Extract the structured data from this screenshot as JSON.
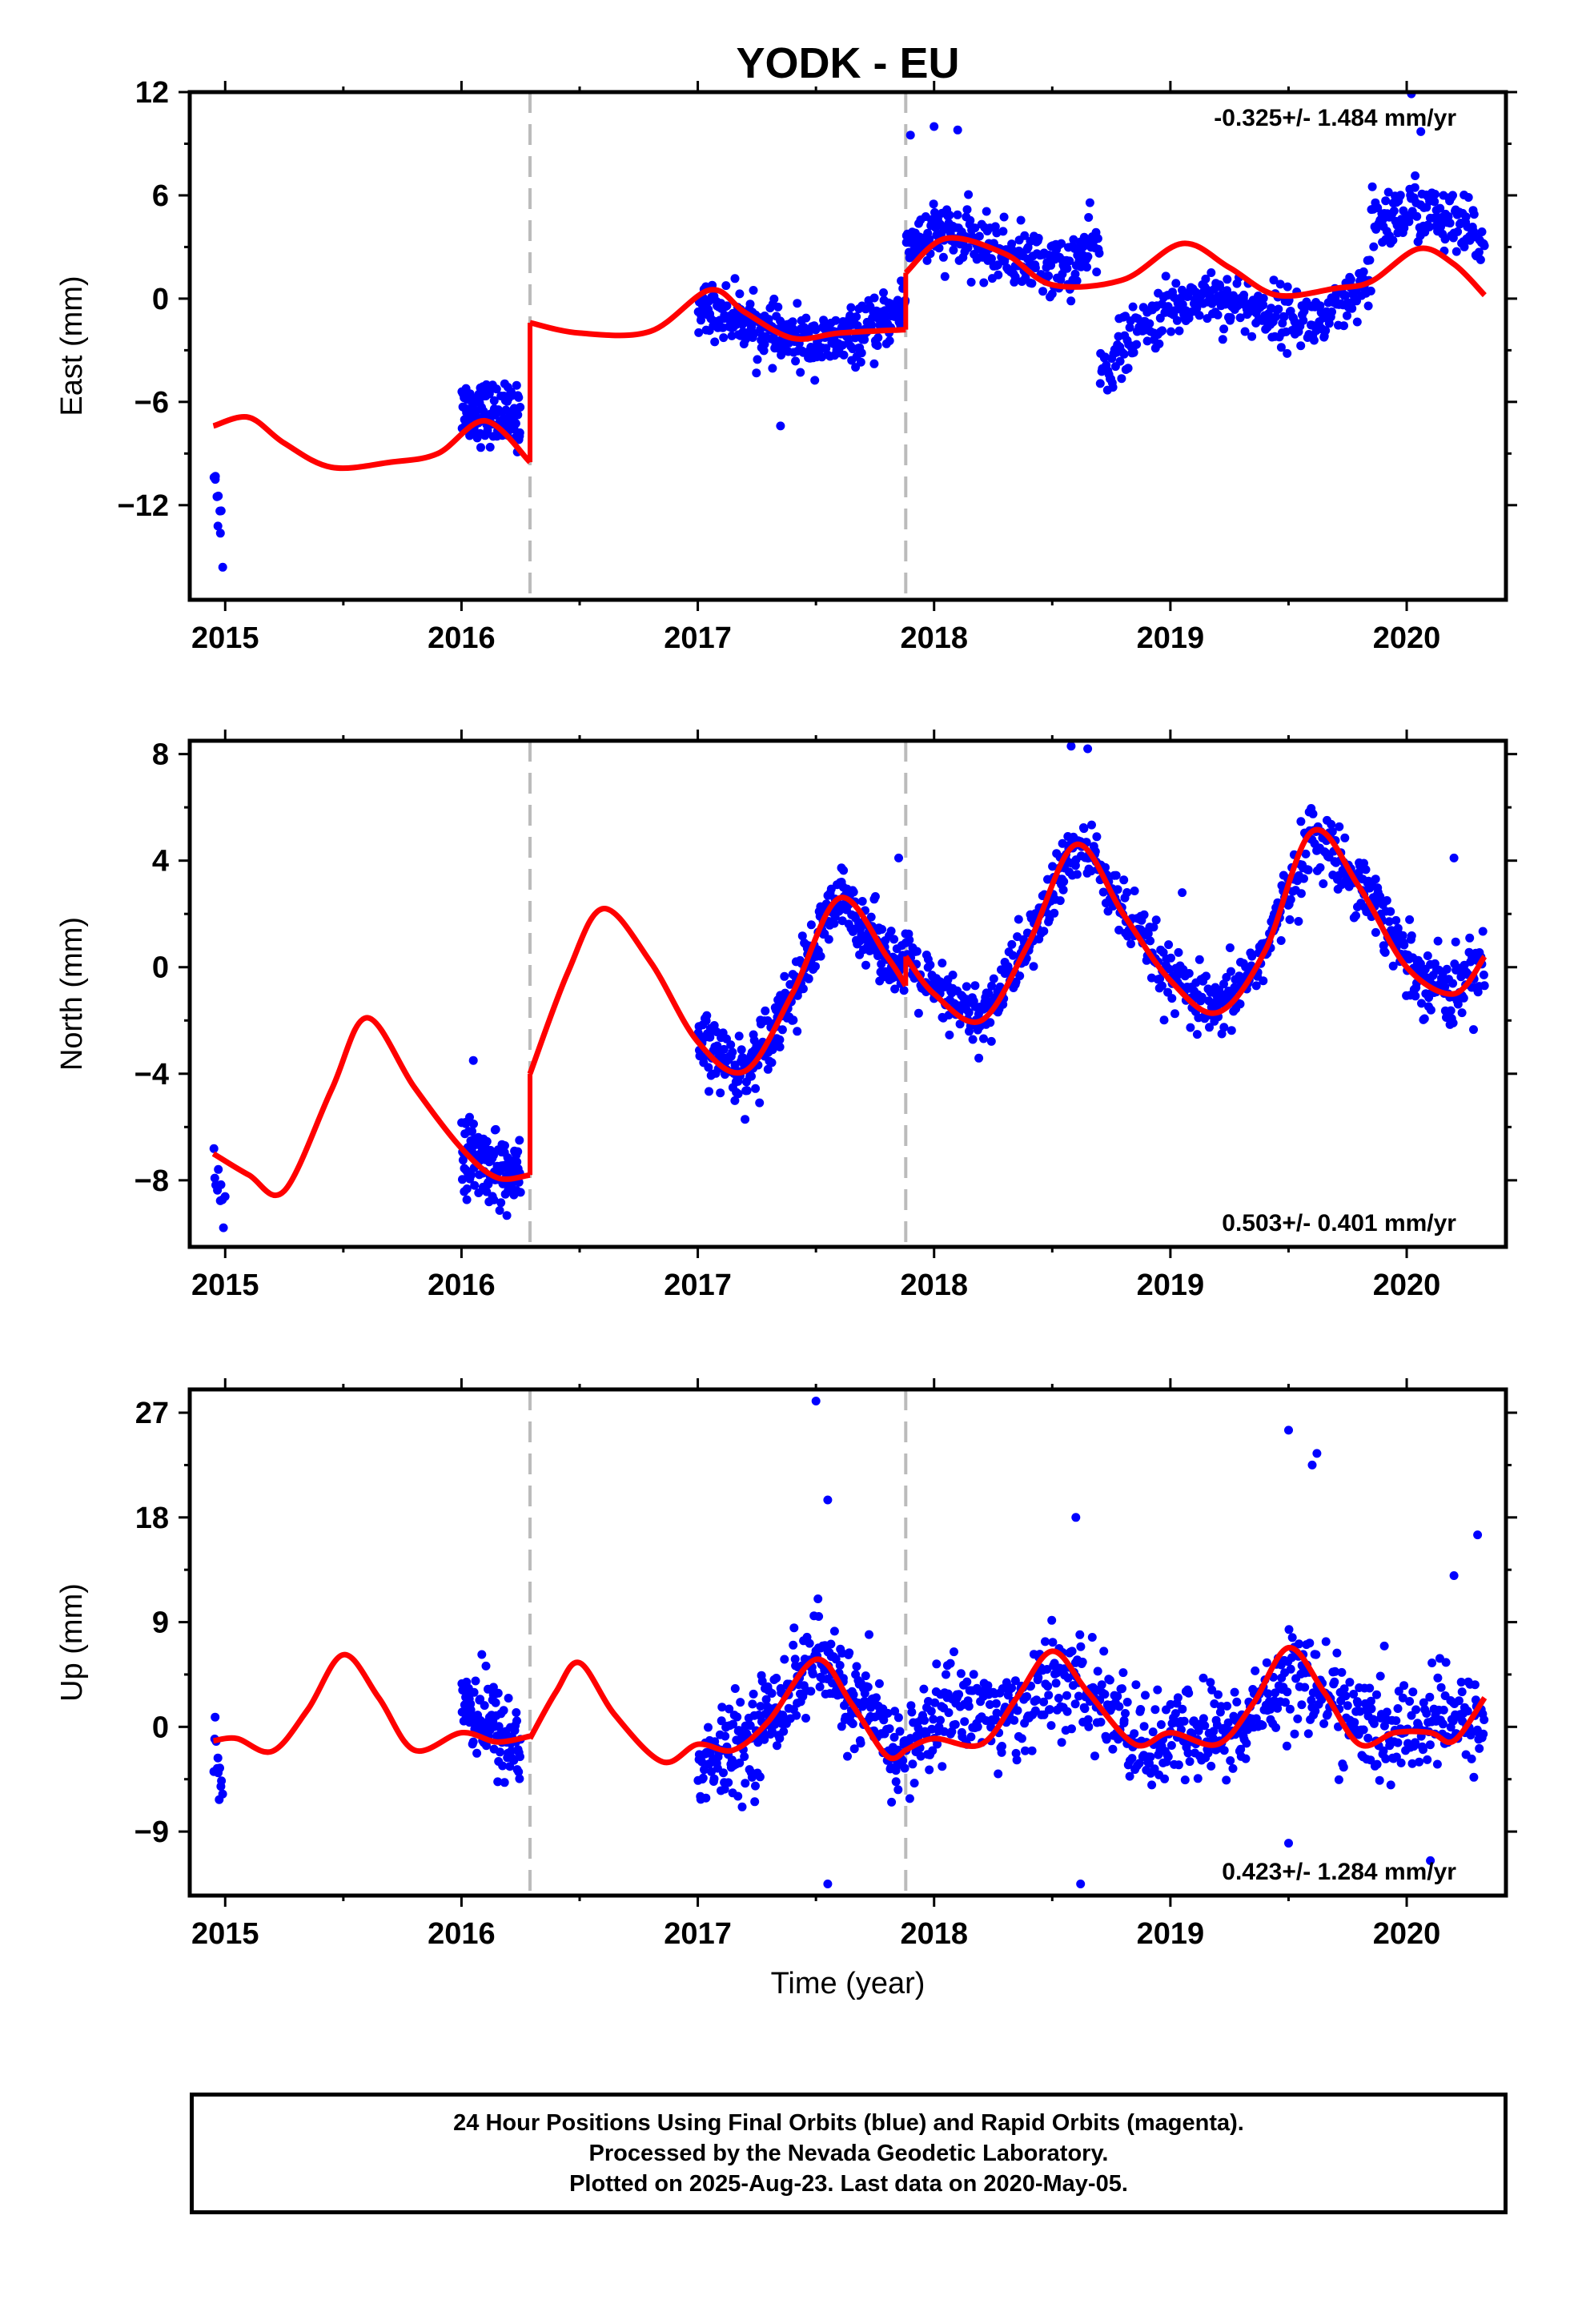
{
  "chart_data": [
    {
      "type": "scatter",
      "title": "YODK - EU",
      "ylabel": "East (mm)",
      "xlim": [
        2014.85,
        2020.42
      ],
      "ylim": [
        -17.5,
        12.0
      ],
      "yticks": [
        12,
        6,
        0,
        -6,
        -12
      ],
      "ytick_labels": [
        "12",
        "6",
        "0",
        "−6",
        "−12"
      ],
      "xticks": [
        2015,
        2016,
        2017,
        2018,
        2019,
        2020
      ],
      "xtick_labels": [
        "2015",
        "2016",
        "2017",
        "2018",
        "2019",
        "2020"
      ],
      "rate_label": "-0.325+/- 1.484 mm/yr",
      "rate_position": "top-right",
      "offsets": [
        2016.29,
        2017.88
      ],
      "points_color": "#0000ff",
      "model_color": "#ff0000",
      "model": {
        "segments": [
          {
            "x": [
              2014.95,
              2015.1,
              2015.25,
              2015.45,
              2015.7,
              2015.9,
              2016.1,
              2016.29
            ],
            "y": [
              -7.4,
              -6.9,
              -8.4,
              -9.8,
              -9.5,
              -9.0,
              -7.1,
              -9.5
            ]
          },
          {
            "x": [
              2016.29,
              2016.5,
              2016.8,
              2017.05,
              2017.2,
              2017.4,
              2017.6,
              2017.88
            ],
            "y": [
              -1.4,
              -2.0,
              -1.9,
              0.5,
              -0.8,
              -2.3,
              -2.0,
              -1.8
            ]
          },
          {
            "x": [
              2017.88,
              2018.05,
              2018.3,
              2018.5,
              2018.8,
              2019.05,
              2019.25,
              2019.45,
              2019.7,
              2019.85,
              2020.05,
              2020.2,
              2020.33
            ],
            "y": [
              1.5,
              3.5,
              2.6,
              0.8,
              1.1,
              3.2,
              1.8,
              0.2,
              0.6,
              1.0,
              2.9,
              2.0,
              0.2
            ]
          }
        ]
      },
      "clusters": [
        {
          "x": [
            2014.95,
            2014.99
          ],
          "y": [
            -9.0,
            -14.5
          ],
          "spread": 1.8,
          "count": 10
        },
        {
          "x": [
            2016.0,
            2016.25
          ],
          "y": [
            -6.3,
            -7.0
          ],
          "spread": 1.6,
          "count": 130
        },
        {
          "x": [
            2017.0,
            2017.15,
            2017.35,
            2017.55,
            2017.75,
            2017.88
          ],
          "y": [
            -0.5,
            -1.0,
            -2.3,
            -2.6,
            -1.8,
            -0.2
          ],
          "spread": 1.4,
          "count": 330
        },
        {
          "x": [
            2017.88,
            2018.05,
            2018.3,
            2018.55,
            2018.7
          ],
          "y": [
            3.3,
            3.8,
            2.6,
            1.7,
            3.2
          ],
          "spread": 1.6,
          "count": 260
        },
        {
          "x": [
            2018.7,
            2018.8,
            2018.95,
            2019.15,
            2019.4,
            2019.65,
            2019.85
          ],
          "y": [
            -4.5,
            -2.8,
            -1.0,
            0.3,
            -0.8,
            -1.4,
            0.8
          ],
          "spread": 1.5,
          "count": 330
        },
        {
          "x": [
            2019.85,
            2020.05,
            2020.33
          ],
          "y": [
            4.4,
            5.2,
            3.3
          ],
          "spread": 1.7,
          "count": 150
        }
      ],
      "outliers": {
        "x": [
          2017.9,
          2018.0,
          2018.1,
          2020.02,
          2020.06,
          2017.35
        ],
        "y": [
          9.5,
          10.0,
          9.8,
          11.9,
          9.7,
          -7.4
        ]
      }
    },
    {
      "type": "scatter",
      "ylabel": "North (mm)",
      "xlim": [
        2014.85,
        2020.42
      ],
      "ylim": [
        -10.5,
        8.5
      ],
      "yticks": [
        8,
        4,
        0,
        -4,
        -8
      ],
      "ytick_labels": [
        "8",
        "4",
        "0",
        "−4",
        "−8"
      ],
      "xticks": [
        2015,
        2016,
        2017,
        2018,
        2019,
        2020
      ],
      "xtick_labels": [
        "2015",
        "2016",
        "2017",
        "2018",
        "2019",
        "2020"
      ],
      "rate_label": "0.503+/- 0.401 mm/yr",
      "rate_position": "bottom-right",
      "offsets": [
        2016.29,
        2017.88
      ],
      "points_color": "#0000ff",
      "model_color": "#ff0000",
      "model": {
        "segments": [
          {
            "x": [
              2014.95,
              2015.1,
              2015.25,
              2015.45,
              2015.6,
              2015.8,
              2016.0,
              2016.15,
              2016.29
            ],
            "y": [
              -7.0,
              -7.8,
              -8.4,
              -4.6,
              -1.9,
              -4.5,
              -6.8,
              -7.9,
              -7.8
            ]
          },
          {
            "x": [
              2016.29,
              2016.45,
              2016.6,
              2016.8,
              2017.0,
              2017.2,
              2017.4,
              2017.6,
              2017.8,
              2017.88
            ],
            "y": [
              -4.0,
              -0.2,
              2.2,
              0.2,
              -2.8,
              -3.9,
              -1.0,
              2.6,
              0.4,
              -0.7
            ]
          },
          {
            "x": [
              2017.88,
              2018.0,
              2018.2,
              2018.4,
              2018.6,
              2018.8,
              2019.0,
              2019.2,
              2019.4,
              2019.6,
              2019.8,
              2020.0,
              2020.2,
              2020.33
            ],
            "y": [
              0.4,
              -1.0,
              -2.0,
              0.9,
              4.6,
              2.0,
              -0.5,
              -1.7,
              0.6,
              5.1,
              3.0,
              0.0,
              -1.0,
              0.4
            ]
          }
        ]
      },
      "clusters": [
        {
          "x": [
            2014.95,
            2015.0
          ],
          "y": [
            -7.0,
            -9.0
          ],
          "spread": 1.2,
          "count": 10
        },
        {
          "x": [
            2016.0,
            2016.25
          ],
          "y": [
            -6.9,
            -8.0
          ],
          "spread": 1.2,
          "count": 130
        },
        {
          "x": [
            2017.0,
            2017.2,
            2017.4,
            2017.6,
            2017.8,
            2017.88
          ],
          "y": [
            -2.8,
            -4.0,
            -1.0,
            2.6,
            0.6,
            -0.4
          ],
          "spread": 1.1,
          "count": 330
        },
        {
          "x": [
            2017.88,
            2018.0,
            2018.2,
            2018.4,
            2018.6,
            2018.7
          ],
          "y": [
            0.4,
            -1.0,
            -2.0,
            0.9,
            4.6,
            3.8
          ],
          "spread": 1.1,
          "count": 260
        },
        {
          "x": [
            2018.7,
            2018.8,
            2019.0,
            2019.2,
            2019.4,
            2019.6,
            2019.85
          ],
          "y": [
            3.8,
            2.0,
            -0.5,
            -1.8,
            0.6,
            5.0,
            2.8
          ],
          "spread": 1.1,
          "count": 330
        },
        {
          "x": [
            2019.85,
            2020.0,
            2020.2,
            2020.33
          ],
          "y": [
            2.8,
            0.2,
            -1.0,
            0.4
          ],
          "spread": 1.2,
          "count": 150
        }
      ],
      "outliers": {
        "x": [
          2016.05,
          2017.85,
          2018.58,
          2018.65,
          2019.05,
          2020.2
        ],
        "y": [
          -3.5,
          4.1,
          8.3,
          8.2,
          2.8,
          4.1
        ]
      }
    },
    {
      "type": "scatter",
      "ylabel": "Up (mm)",
      "xlabel": "Time (year)",
      "xlim": [
        2014.85,
        2020.42
      ],
      "ylim": [
        -14.5,
        29.0
      ],
      "yticks": [
        27,
        18,
        9,
        0,
        -9
      ],
      "ytick_labels": [
        "27",
        "18",
        "9",
        "0",
        "−9"
      ],
      "xticks": [
        2015,
        2016,
        2017,
        2018,
        2019,
        2020
      ],
      "xtick_labels": [
        "2015",
        "2016",
        "2017",
        "2018",
        "2019",
        "2020"
      ],
      "rate_label": "0.423+/- 1.284 mm/yr",
      "rate_position": "bottom-right",
      "offsets": [
        2016.29,
        2017.88
      ],
      "points_color": "#0000ff",
      "model_color": "#ff0000",
      "model": {
        "segments": [
          {
            "x": [
              2014.95,
              2015.05,
              2015.2,
              2015.35,
              2015.5,
              2015.65,
              2015.8,
              2016.0,
              2016.15,
              2016.29
            ],
            "y": [
              -1.2,
              -1.0,
              -2.1,
              1.5,
              6.2,
              2.5,
              -2.0,
              -0.5,
              -1.3,
              -0.8
            ]
          },
          {
            "x": [
              2016.29,
              2016.4,
              2016.5,
              2016.65,
              2016.85,
              2017.0,
              2017.15,
              2017.3,
              2017.5,
              2017.65,
              2017.8,
              2017.88
            ],
            "y": [
              -1.0,
              3.0,
              5.5,
              1.0,
              -3.0,
              -1.5,
              -2.0,
              0.5,
              5.8,
              2.0,
              -2.5,
              -2.0
            ]
          },
          {
            "x": [
              2017.88,
              2018.0,
              2018.2,
              2018.35,
              2018.5,
              2018.65,
              2018.85,
              2019.0,
              2019.2,
              2019.35,
              2019.5,
              2019.65,
              2019.8,
              2019.95,
              2020.1,
              2020.2,
              2020.33
            ],
            "y": [
              -2.0,
              -1.0,
              -1.5,
              2.5,
              6.5,
              3.0,
              -1.5,
              -0.5,
              -1.5,
              2.0,
              6.8,
              3.0,
              -1.5,
              -0.5,
              -0.5,
              -1.2,
              2.5
            ]
          }
        ]
      },
      "clusters": [
        {
          "x": [
            2014.95,
            2014.99
          ],
          "y": [
            0.0,
            -6.0
          ],
          "spread": 3.5,
          "count": 12
        },
        {
          "x": [
            2016.0,
            2016.25
          ],
          "y": [
            2.5,
            -2.0
          ],
          "spread": 3.5,
          "count": 120
        },
        {
          "x": [
            2017.0,
            2017.2,
            2017.5,
            2017.7,
            2017.88
          ],
          "y": [
            -3.5,
            -1.5,
            6.0,
            1.5,
            -3.0
          ],
          "spread": 3.6,
          "count": 320
        },
        {
          "x": [
            2017.88,
            2018.1,
            2018.3,
            2018.5,
            2018.7,
            2018.9,
            2019.1,
            2019.3,
            2019.5,
            2019.7,
            2019.9,
            2020.1,
            2020.33
          ],
          "y": [
            -2.0,
            2.5,
            0.5,
            4.0,
            2.5,
            -2.0,
            -0.5,
            -0.5,
            5.0,
            2.0,
            -1.0,
            0.5,
            0.5
          ],
          "spread": 3.8,
          "count": 700
        }
      ],
      "outliers": {
        "x": [
          2017.5,
          2017.55,
          2018.6,
          2019.5,
          2019.6,
          2019.62,
          2020.2,
          2020.3,
          2018.62,
          2017.55,
          2019.5,
          2020.1
        ],
        "y": [
          28.0,
          19.5,
          18.0,
          25.5,
          22.5,
          23.5,
          13.0,
          16.5,
          -13.5,
          -13.5,
          -10.0,
          -11.5
        ]
      }
    }
  ],
  "footer": {
    "line1": "24 Hour Positions Using Final Orbits (blue) and Rapid Orbits (magenta).",
    "line2": "Processed by the Nevada Geodetic Laboratory.",
    "line3": "Plotted on 2025-Aug-23. Last data on 2020-May-05."
  }
}
